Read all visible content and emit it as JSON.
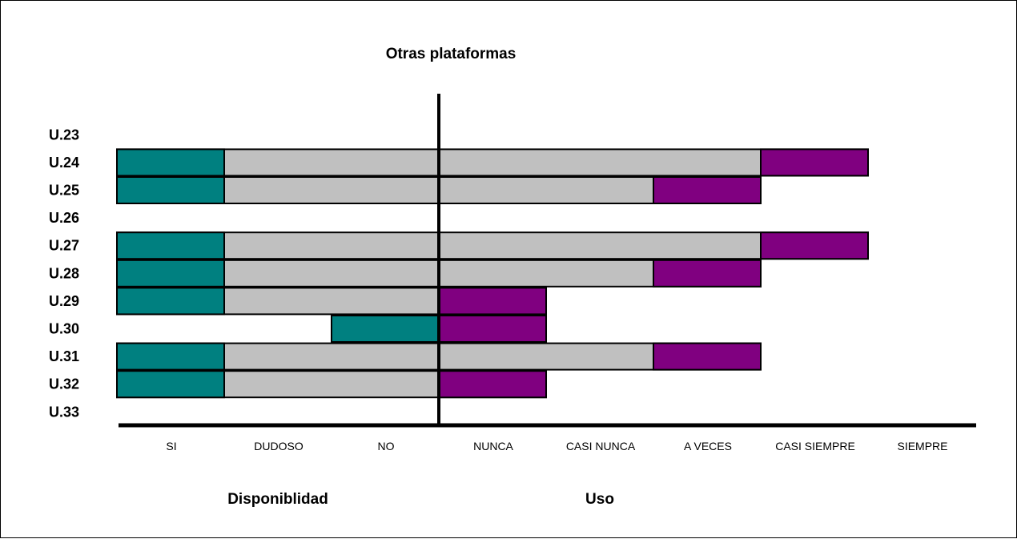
{
  "chart_data": {
    "type": "bar",
    "title": "Otras plataformas",
    "categories": [
      "U.23",
      "U.24",
      "U.25",
      "U.26",
      "U.27",
      "U.28",
      "U.29",
      "U.30",
      "U.31",
      "U.32",
      "U.33"
    ],
    "x_ticks": [
      "SI",
      "DUDOSO",
      "NO",
      "NUNCA",
      "CASI NUNCA",
      "A VECES",
      "CASI SIEMPRE",
      "SIEMPRE"
    ],
    "x_groups": [
      "Disponiblidad",
      "Uso"
    ],
    "disponibilidad": [
      null,
      "SI",
      "SI",
      null,
      "SI",
      "SI",
      "SI",
      "NO",
      "SI",
      "SI",
      null
    ],
    "uso": [
      null,
      "CASI SIEMPRE",
      "A VECES",
      null,
      "CASI SIEMPRE",
      "A VECES",
      "NUNCA",
      "NUNCA",
      "A VECES",
      "NUNCA",
      null
    ],
    "colors": {
      "disponibilidad": "#008080",
      "uso": "#800080",
      "fill": "#c0c0c0",
      "outline": "#000000"
    },
    "grid": false
  }
}
